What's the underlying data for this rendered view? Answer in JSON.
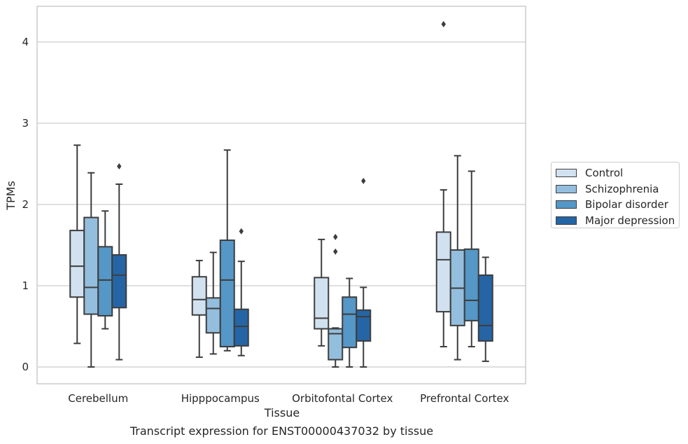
{
  "chart_data": {
    "type": "box",
    "title": "",
    "caption": "Transcript expression for ENST00000437032 by tissue",
    "xlabel": "Tissue",
    "ylabel": "TPMs",
    "ylim": [
      -0.2,
      4.44
    ],
    "yticks": [
      "0",
      "1",
      "2",
      "3",
      "4"
    ],
    "ytick_values": [
      0,
      1,
      2,
      3,
      4
    ],
    "grid": "horizontal",
    "legend_position": "right",
    "categories": [
      "Cerebellum",
      "Hipppocampus",
      "Orbitofontal Cortex",
      "Prefrontal Cortex"
    ],
    "series": [
      {
        "name": "Control",
        "color": "#d1e1f0",
        "boxes": [
          {
            "whislo": 0.29,
            "q1": 0.86,
            "med": 1.24,
            "q3": 1.68,
            "whishi": 2.73,
            "fliers": []
          },
          {
            "whislo": 0.12,
            "q1": 0.64,
            "med": 0.83,
            "q3": 1.11,
            "whishi": 1.31,
            "fliers": []
          },
          {
            "whislo": 0.26,
            "q1": 0.47,
            "med": 0.6,
            "q3": 1.1,
            "whishi": 1.57,
            "fliers": []
          },
          {
            "whislo": 0.25,
            "q1": 0.68,
            "med": 1.32,
            "q3": 1.66,
            "whishi": 2.18,
            "fliers": [
              4.22
            ]
          }
        ]
      },
      {
        "name": "Schizophrenia",
        "color": "#94bedd",
        "boxes": [
          {
            "whislo": 0.0,
            "q1": 0.65,
            "med": 0.98,
            "q3": 1.84,
            "whishi": 2.39,
            "fliers": []
          },
          {
            "whislo": 0.16,
            "q1": 0.42,
            "med": 0.72,
            "q3": 0.85,
            "whishi": 1.41,
            "fliers": []
          },
          {
            "whislo": 0.0,
            "q1": 0.09,
            "med": 0.41,
            "q3": 0.47,
            "whishi": 0.48,
            "fliers": [
              1.42,
              1.6
            ]
          },
          {
            "whislo": 0.09,
            "q1": 0.51,
            "med": 0.97,
            "q3": 1.44,
            "whishi": 2.6,
            "fliers": []
          }
        ]
      },
      {
        "name": "Bipolar disorder",
        "color": "#5597c6",
        "boxes": [
          {
            "whislo": 0.47,
            "q1": 0.63,
            "med": 1.07,
            "q3": 1.48,
            "whishi": 1.92,
            "fliers": []
          },
          {
            "whislo": 0.2,
            "q1": 0.25,
            "med": 1.07,
            "q3": 1.56,
            "whishi": 2.67,
            "fliers": []
          },
          {
            "whislo": 0.0,
            "q1": 0.24,
            "med": 0.65,
            "q3": 0.86,
            "whishi": 1.09,
            "fliers": []
          },
          {
            "whislo": 0.25,
            "q1": 0.57,
            "med": 0.82,
            "q3": 1.45,
            "whishi": 2.41,
            "fliers": []
          }
        ]
      },
      {
        "name": "Major depression",
        "color": "#2565a5",
        "boxes": [
          {
            "whislo": 0.09,
            "q1": 0.73,
            "med": 1.13,
            "q3": 1.38,
            "whishi": 2.25,
            "fliers": [
              2.47
            ]
          },
          {
            "whislo": 0.14,
            "q1": 0.26,
            "med": 0.5,
            "q3": 0.71,
            "whishi": 1.3,
            "fliers": [
              1.67
            ]
          },
          {
            "whislo": 0.0,
            "q1": 0.32,
            "med": 0.62,
            "q3": 0.7,
            "whishi": 0.98,
            "fliers": [
              2.29
            ]
          },
          {
            "whislo": 0.07,
            "q1": 0.32,
            "med": 0.51,
            "q3": 1.13,
            "whishi": 1.35,
            "fliers": []
          }
        ]
      }
    ]
  }
}
